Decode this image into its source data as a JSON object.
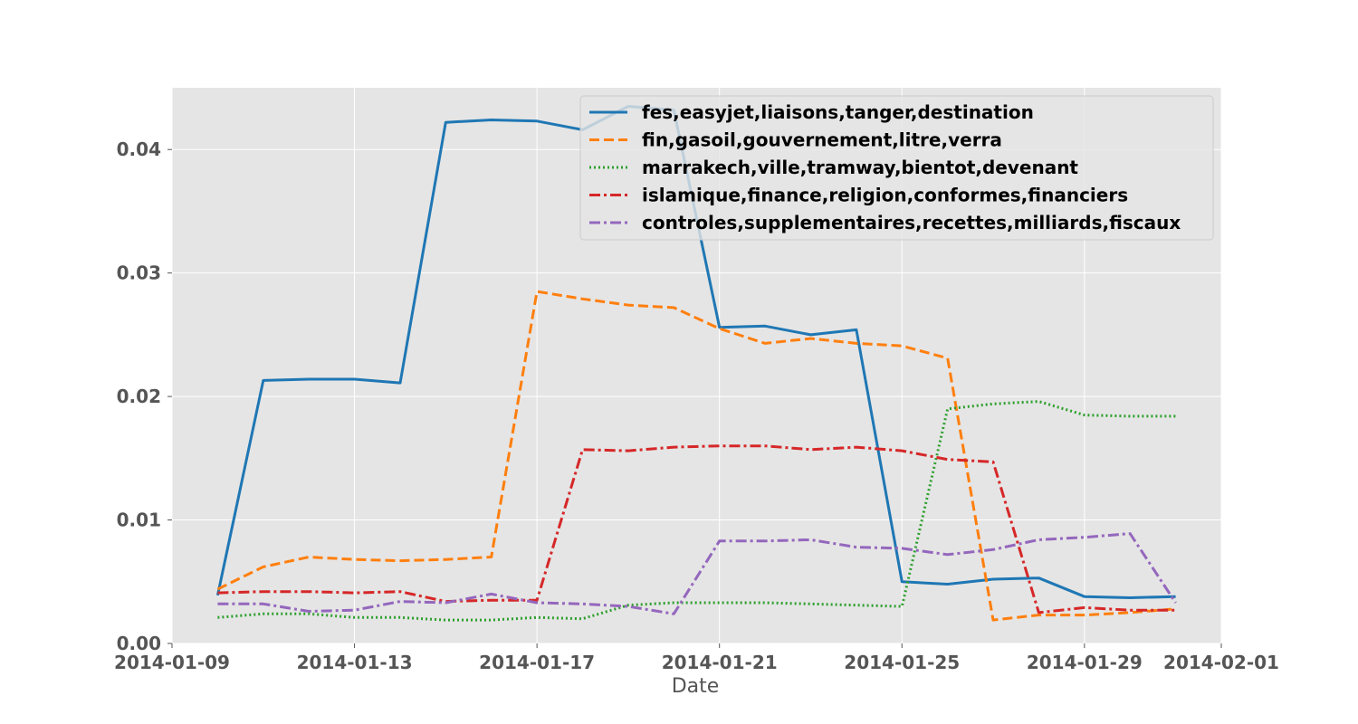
{
  "chart_data": {
    "type": "line",
    "title": "",
    "xlabel": "Date",
    "ylabel": "",
    "xlim": [
      "2014-01-09",
      "2014-02-01"
    ],
    "ylim": [
      0,
      0.045
    ],
    "x_ticks": [
      "2014-01-09",
      "2014-01-13",
      "2014-01-17",
      "2014-01-21",
      "2014-01-25",
      "2014-01-29",
      "2014-02-01"
    ],
    "y_ticks": [
      "0.00",
      "0.01",
      "0.02",
      "0.03",
      "0.04"
    ],
    "y_tick_values": [
      0,
      0.01,
      0.02,
      0.03,
      0.04
    ],
    "grid": true,
    "legend_position": "top-right",
    "x": [
      "2014-01-10",
      "2014-01-11",
      "2014-01-12",
      "2014-01-13",
      "2014-01-14",
      "2014-01-15",
      "2014-01-16",
      "2014-01-17",
      "2014-01-18",
      "2014-01-19",
      "2014-01-20",
      "2014-01-21",
      "2014-01-22",
      "2014-01-23",
      "2014-01-24",
      "2014-01-25",
      "2014-01-26",
      "2014-01-27",
      "2014-01-28",
      "2014-01-29",
      "2014-01-30",
      "2014-01-31"
    ],
    "series": [
      {
        "name": "fes,easyjet,liaisons,tanger,destination",
        "color": "#1f77b4",
        "dash": "solid",
        "values": [
          0.0039,
          0.0213,
          0.0214,
          0.0214,
          0.0211,
          0.0422,
          0.0424,
          0.0423,
          0.0416,
          0.0435,
          0.0432,
          0.0256,
          0.0257,
          0.025,
          0.0254,
          0.005,
          0.0048,
          0.0052,
          0.0053,
          0.0038,
          0.0037,
          0.0038
        ]
      },
      {
        "name": "fin,gasoil,gouvernement,litre,verra",
        "color": "#ff7f0e",
        "dash": "dashed",
        "values": [
          0.0044,
          0.0062,
          0.007,
          0.0068,
          0.0067,
          0.0068,
          0.007,
          0.0285,
          0.0279,
          0.0274,
          0.0272,
          0.0255,
          0.0243,
          0.0247,
          0.0243,
          0.0241,
          0.0231,
          0.0019,
          0.0023,
          0.0023,
          0.0025,
          0.0028
        ]
      },
      {
        "name": "marrakech,ville,tramway,bientot,devenant",
        "color": "#2ca02c",
        "dash": "dotted",
        "values": [
          0.0021,
          0.0024,
          0.0024,
          0.0021,
          0.0021,
          0.0019,
          0.0019,
          0.0021,
          0.002,
          0.0031,
          0.0033,
          0.0033,
          0.0033,
          0.0032,
          0.0031,
          0.003,
          0.019,
          0.0194,
          0.0196,
          0.0185,
          0.0184,
          0.0184
        ]
      },
      {
        "name": "islamique,finance,religion,conformes,financiers",
        "color": "#d62728",
        "dash": "dashdot",
        "values": [
          0.0041,
          0.0042,
          0.0042,
          0.0041,
          0.0042,
          0.0034,
          0.0035,
          0.0035,
          0.0157,
          0.0156,
          0.0159,
          0.016,
          0.016,
          0.0157,
          0.0159,
          0.0156,
          0.0149,
          0.0147,
          0.0025,
          0.0029,
          0.0027,
          0.0027
        ]
      },
      {
        "name": "controles,supplementaires,recettes,milliards,fiscaux",
        "color": "#9467bd",
        "dash": "dashdot",
        "values": [
          0.0032,
          0.0032,
          0.0026,
          0.0027,
          0.0034,
          0.0033,
          0.004,
          0.0033,
          0.0032,
          0.003,
          0.0024,
          0.0083,
          0.0083,
          0.0084,
          0.0078,
          0.0077,
          0.0072,
          0.0076,
          0.0084,
          0.0086,
          0.0089,
          0.0033
        ]
      }
    ]
  }
}
